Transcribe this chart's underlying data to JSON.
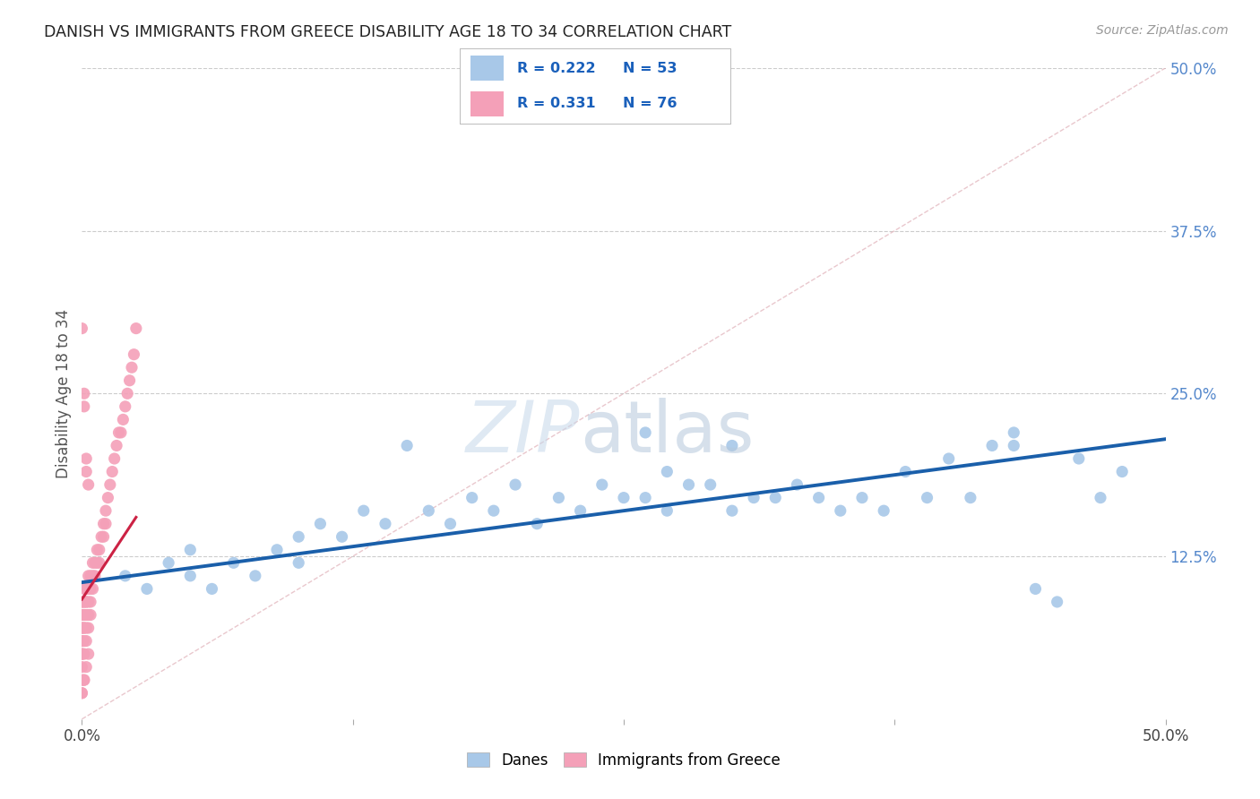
{
  "title": "DANISH VS IMMIGRANTS FROM GREECE DISABILITY AGE 18 TO 34 CORRELATION CHART",
  "source": "Source: ZipAtlas.com",
  "ylabel": "Disability Age 18 to 34",
  "xlim": [
    0.0,
    0.5
  ],
  "ylim": [
    0.0,
    0.5
  ],
  "danes_color": "#a8c8e8",
  "greece_color": "#f4a0b8",
  "danes_line_color": "#1a5faa",
  "greece_line_color": "#cc2244",
  "legend_text_color": "#1a60bb",
  "danes_x": [
    0.02,
    0.03,
    0.04,
    0.05,
    0.05,
    0.06,
    0.07,
    0.08,
    0.09,
    0.1,
    0.1,
    0.11,
    0.12,
    0.13,
    0.14,
    0.15,
    0.16,
    0.17,
    0.18,
    0.19,
    0.2,
    0.21,
    0.22,
    0.23,
    0.24,
    0.25,
    0.26,
    0.27,
    0.28,
    0.29,
    0.3,
    0.31,
    0.32,
    0.33,
    0.34,
    0.35,
    0.36,
    0.37,
    0.38,
    0.39,
    0.4,
    0.41,
    0.42,
    0.43,
    0.44,
    0.45,
    0.46,
    0.47,
    0.48,
    0.26,
    0.27,
    0.3,
    0.43
  ],
  "danes_y": [
    0.11,
    0.1,
    0.12,
    0.11,
    0.13,
    0.1,
    0.12,
    0.11,
    0.13,
    0.12,
    0.14,
    0.15,
    0.14,
    0.16,
    0.15,
    0.21,
    0.16,
    0.15,
    0.17,
    0.16,
    0.18,
    0.15,
    0.17,
    0.16,
    0.18,
    0.17,
    0.17,
    0.16,
    0.18,
    0.18,
    0.16,
    0.17,
    0.17,
    0.18,
    0.17,
    0.16,
    0.17,
    0.16,
    0.19,
    0.17,
    0.2,
    0.17,
    0.21,
    0.22,
    0.1,
    0.09,
    0.2,
    0.17,
    0.19,
    0.22,
    0.19,
    0.21,
    0.21
  ],
  "greece_x": [
    0.0,
    0.0,
    0.0,
    0.0,
    0.0,
    0.0,
    0.0,
    0.0,
    0.0,
    0.0,
    0.0,
    0.0,
    0.001,
    0.001,
    0.001,
    0.001,
    0.001,
    0.001,
    0.001,
    0.001,
    0.001,
    0.002,
    0.002,
    0.002,
    0.002,
    0.002,
    0.002,
    0.003,
    0.003,
    0.003,
    0.003,
    0.003,
    0.004,
    0.004,
    0.004,
    0.004,
    0.005,
    0.005,
    0.005,
    0.006,
    0.006,
    0.007,
    0.007,
    0.008,
    0.008,
    0.009,
    0.01,
    0.01,
    0.011,
    0.011,
    0.012,
    0.013,
    0.014,
    0.015,
    0.016,
    0.017,
    0.018,
    0.019,
    0.02,
    0.021,
    0.022,
    0.023,
    0.024,
    0.025,
    0.0,
    0.001,
    0.001,
    0.002,
    0.002,
    0.003,
    0.0,
    0.0,
    0.001,
    0.001,
    0.002,
    0.003
  ],
  "greece_y": [
    0.09,
    0.09,
    0.08,
    0.08,
    0.07,
    0.07,
    0.06,
    0.06,
    0.05,
    0.05,
    0.04,
    0.03,
    0.1,
    0.09,
    0.09,
    0.08,
    0.08,
    0.07,
    0.07,
    0.06,
    0.05,
    0.1,
    0.09,
    0.09,
    0.08,
    0.07,
    0.06,
    0.11,
    0.1,
    0.09,
    0.08,
    0.07,
    0.11,
    0.1,
    0.09,
    0.08,
    0.12,
    0.11,
    0.1,
    0.12,
    0.11,
    0.13,
    0.12,
    0.13,
    0.12,
    0.14,
    0.15,
    0.14,
    0.16,
    0.15,
    0.17,
    0.18,
    0.19,
    0.2,
    0.21,
    0.22,
    0.22,
    0.23,
    0.24,
    0.25,
    0.26,
    0.27,
    0.28,
    0.3,
    0.3,
    0.25,
    0.24,
    0.2,
    0.19,
    0.18,
    0.02,
    0.02,
    0.03,
    0.03,
    0.04,
    0.05
  ],
  "danes_line_x": [
    0.0,
    0.5
  ],
  "danes_line_y": [
    0.105,
    0.215
  ],
  "greece_line_x": [
    0.0,
    0.025
  ],
  "greece_line_y": [
    0.092,
    0.155
  ]
}
